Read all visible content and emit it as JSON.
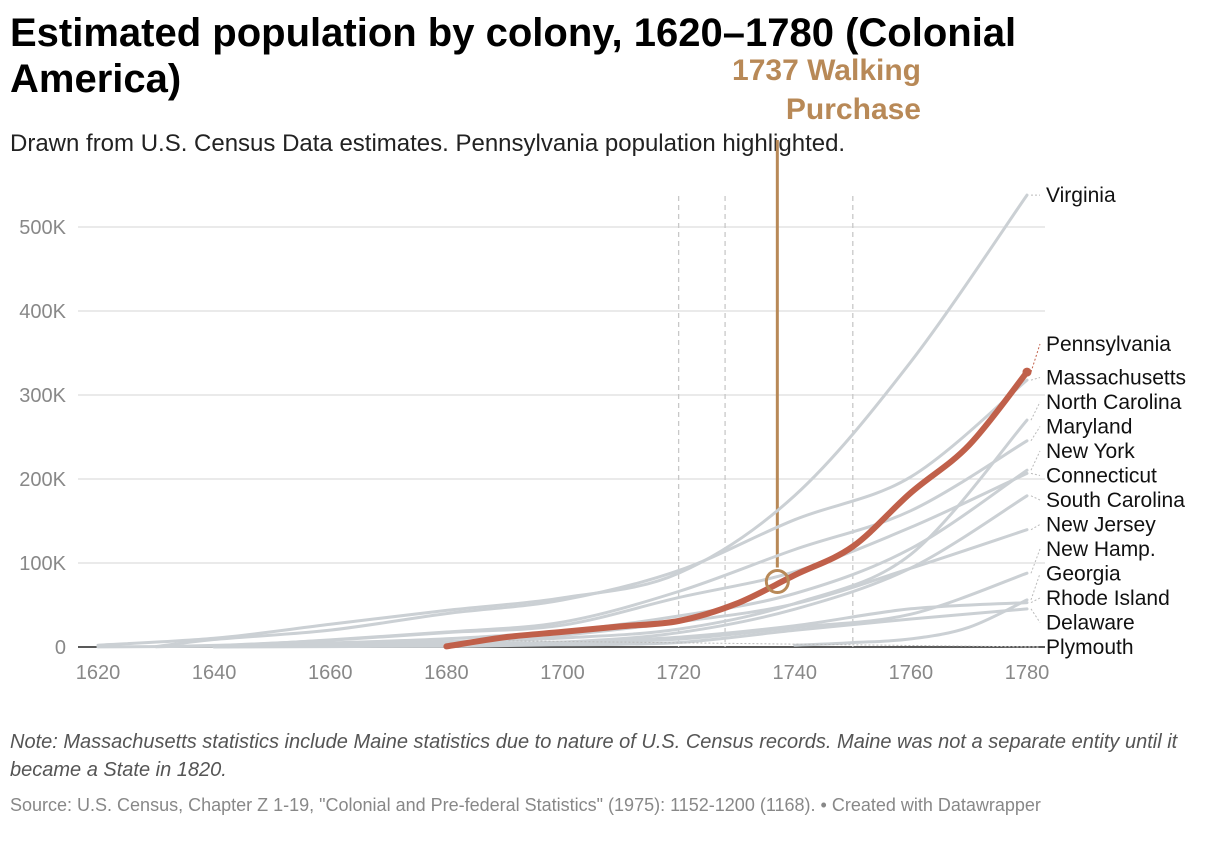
{
  "header": {
    "title": "Estimated population by colony, 1620–1780 (Colonial America)",
    "subtitle": "Drawn from U.S. Census Data estimates. Pennsylvania population highlighted."
  },
  "footer": {
    "note": "Note: Massachusetts statistics include Maine statistics due to nature of U.S. Census records. Maine was not a separate entity until it became a State in 1820.",
    "source": "Source: U.S. Census, Chapter Z 1-19, \"Colonial and Pre-federal Statistics\" (1975): 1152-1200 (1168). • Created with Datawrapper"
  },
  "colors": {
    "highlight": "#c0604a",
    "base": "#cbd0d4",
    "annotation": "#b88957"
  },
  "chart_data": {
    "type": "line",
    "title": "Estimated population by colony, 1620–1780 (Colonial America)",
    "xlim": [
      1620,
      1780
    ],
    "ylim": [
      0,
      500000
    ],
    "x_ticks": [
      1620,
      1640,
      1660,
      1680,
      1700,
      1720,
      1740,
      1760,
      1780
    ],
    "y_ticks": [
      {
        "value": 0,
        "label": "0"
      },
      {
        "value": 100000,
        "label": "100K"
      },
      {
        "value": 200000,
        "label": "200K"
      },
      {
        "value": 300000,
        "label": "300K"
      },
      {
        "value": 400000,
        "label": "400K"
      },
      {
        "value": 500000,
        "label": "500K"
      }
    ],
    "reference_lines": [
      1720,
      1728,
      1750
    ],
    "annotation": {
      "text_lines": [
        "1737 Walking",
        "Purchase"
      ],
      "x": 1737,
      "y": 78000
    },
    "highlight": "Pennsylvania",
    "series": [
      {
        "name": "Virginia",
        "label": "Virginia",
        "x": [
          1620,
          1640,
          1660,
          1680,
          1700,
          1720,
          1740,
          1760,
          1780
        ],
        "values": [
          2200,
          10400,
          27000,
          43600,
          58600,
          87800,
          180400,
          339700,
          538000
        ]
      },
      {
        "name": "Pennsylvania",
        "label": "Pennsylvania",
        "x": [
          1680,
          1690,
          1700,
          1710,
          1720,
          1730,
          1740,
          1750,
          1760,
          1770,
          1780
        ],
        "values": [
          700,
          11500,
          18000,
          24500,
          31000,
          51700,
          85600,
          119700,
          183700,
          240100,
          327300
        ]
      },
      {
        "name": "Massachusetts",
        "label": "Massachusetts",
        "x": [
          1630,
          1640,
          1660,
          1680,
          1700,
          1720,
          1740,
          1760,
          1780
        ],
        "values": [
          500,
          8900,
          20100,
          39800,
          55900,
          91000,
          151600,
          202600,
          317700
        ]
      },
      {
        "name": "North Carolina",
        "label": "North Carolina",
        "x": [
          1660,
          1680,
          1700,
          1720,
          1740,
          1760,
          1780
        ],
        "values": [
          1000,
          5400,
          10700,
          21300,
          51800,
          110400,
          270100
        ]
      },
      {
        "name": "Maryland",
        "label": "Maryland",
        "x": [
          1640,
          1660,
          1680,
          1700,
          1720,
          1740,
          1760,
          1780
        ],
        "values": [
          600,
          8400,
          17900,
          29600,
          66100,
          116100,
          162300,
          245500
        ]
      },
      {
        "name": "New York",
        "label": "New York",
        "x": [
          1630,
          1640,
          1660,
          1680,
          1700,
          1720,
          1740,
          1760,
          1780
        ],
        "values": [
          300,
          1900,
          4900,
          9800,
          19100,
          36900,
          63700,
          117100,
          210500
        ]
      },
      {
        "name": "Connecticut",
        "label": "Connecticut",
        "x": [
          1640,
          1660,
          1680,
          1700,
          1720,
          1740,
          1760,
          1780
        ],
        "values": [
          1500,
          8000,
          17200,
          26000,
          58800,
          89600,
          142500,
          206700
        ]
      },
      {
        "name": "South Carolina",
        "label": "South Carolina",
        "x": [
          1680,
          1700,
          1720,
          1740,
          1760,
          1780
        ],
        "values": [
          1200,
          5700,
          17000,
          45000,
          94100,
          180000
        ]
      },
      {
        "name": "New Jersey",
        "label": "New Jersey",
        "x": [
          1680,
          1700,
          1720,
          1740,
          1760,
          1780
        ],
        "values": [
          3400,
          14000,
          29800,
          51400,
          93800,
          139600
        ]
      },
      {
        "name": "New Hampshire",
        "label": "New Hamp.",
        "x": [
          1640,
          1660,
          1680,
          1700,
          1720,
          1740,
          1760,
          1780
        ],
        "values": [
          1000,
          1600,
          2000,
          5000,
          9400,
          23300,
          39100,
          87800
        ]
      },
      {
        "name": "Georgia",
        "label": "Georgia",
        "x": [
          1740,
          1750,
          1760,
          1770,
          1780
        ],
        "values": [
          2000,
          5200,
          9600,
          23400,
          56100
        ]
      },
      {
        "name": "Rhode Island",
        "label": "Rhode Island",
        "x": [
          1640,
          1660,
          1680,
          1700,
          1720,
          1740,
          1760,
          1780
        ],
        "values": [
          300,
          1500,
          3000,
          5900,
          11700,
          25300,
          45500,
          52900
        ]
      },
      {
        "name": "Delaware",
        "label": "Delaware",
        "x": [
          1640,
          1660,
          1680,
          1700,
          1720,
          1740,
          1760,
          1780
        ],
        "values": [
          0,
          500,
          1000,
          2500,
          5400,
          19900,
          33300,
          45400
        ]
      },
      {
        "name": "Plymouth",
        "label": "Plymouth",
        "x": [
          1620,
          1640,
          1660,
          1680,
          1690
        ],
        "values": [
          100,
          1000,
          2000,
          6400,
          7400
        ]
      }
    ]
  }
}
